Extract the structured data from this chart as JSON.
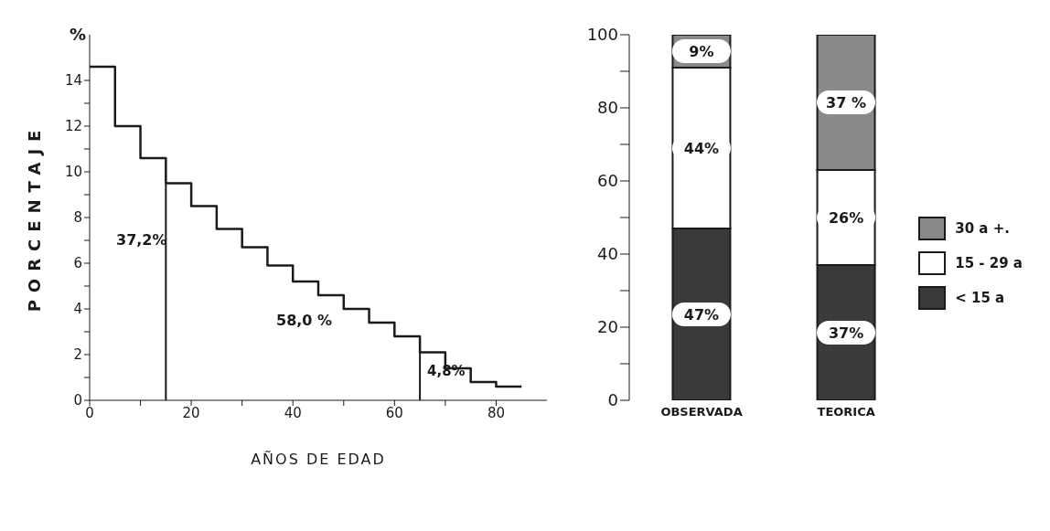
{
  "chart_data": [
    {
      "type": "histogram",
      "xlabel": "AÑOS DE EDAD",
      "ylabel": "PORCENTAJE",
      "color": "#1a1a1a",
      "bins": [
        0,
        5,
        10,
        15,
        20,
        25,
        30,
        35,
        40,
        45,
        50,
        55,
        60,
        65,
        70,
        75,
        80,
        85
      ],
      "values": [
        14.6,
        12.0,
        10.6,
        9.5,
        8.5,
        7.5,
        6.7,
        5.9,
        5.2,
        4.6,
        4.0,
        3.4,
        2.8,
        2.1,
        1.4,
        0.8,
        0.6
      ],
      "xlim": [
        0,
        90
      ],
      "xticks": [
        0,
        {
          "value": 10,
          "label": null
        },
        20,
        {
          "value": 30,
          "label": null
        },
        40,
        {
          "value": 50,
          "label": null
        },
        60,
        {
          "value": 70,
          "label": null
        },
        80
      ],
      "ylim": [
        0,
        16
      ],
      "yticks": [
        0,
        {
          "value": 1,
          "label": null
        },
        2,
        {
          "value": 3,
          "label": null
        },
        4,
        {
          "value": 5,
          "label": null
        },
        6,
        {
          "value": 7,
          "label": null
        },
        8,
        {
          "value": 9,
          "label": null
        },
        10,
        {
          "value": 11,
          "label": null
        },
        12,
        {
          "value": 13,
          "label": null
        },
        14
      ],
      "ref_lines": [
        {
          "axis": "x",
          "value": 15,
          "color": "#1a1a1a"
        },
        {
          "axis": "x",
          "value": 65,
          "color": "#1a1a1a"
        }
      ],
      "annotations": [
        "%",
        "37,2%",
        "58,0 %",
        "4,8%"
      ],
      "grid": false
    },
    {
      "type": "bar",
      "stacked": true,
      "categories": [
        "OBSERVADA",
        "TEORICA"
      ],
      "series": [
        {
          "name": "< 15 a",
          "color": "#3a3a3a",
          "values": [
            47,
            37
          ],
          "value_labels": [
            "47%",
            "37%"
          ]
        },
        {
          "name": "15 - 29 a",
          "color": "#ffffff",
          "values": [
            44,
            26
          ],
          "value_labels": [
            "44%",
            "26%"
          ]
        },
        {
          "name": "30 a +.",
          "color": "#8a8a8a",
          "values": [
            9,
            37
          ],
          "value_labels": [
            "9%",
            "37 %"
          ]
        }
      ],
      "ylim": [
        0,
        100
      ],
      "yticks": [
        0,
        {
          "value": 10,
          "label": null
        },
        20,
        {
          "value": 30,
          "label": null
        },
        40,
        {
          "value": 50,
          "label": null
        },
        60,
        {
          "value": 70,
          "label": null
        },
        80,
        {
          "value": 90,
          "label": null
        },
        100
      ],
      "grid": false,
      "legend": "right"
    }
  ]
}
